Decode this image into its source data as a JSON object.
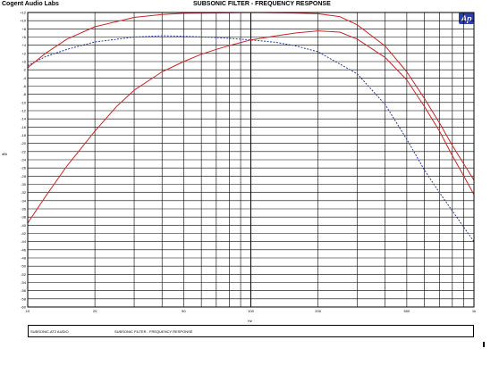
{
  "header": {
    "brand": "Cogent Audio Labs",
    "title": "SUBSONIC FILTER - FREQUENCY RESPONSE",
    "logo_text": "Ap"
  },
  "footer": {
    "left_text": "SUBSONIC.AT2 AUDIO",
    "middle_text": "SUBSONIC FILTER - FREQUENCY RESPONSE"
  },
  "chart_data": {
    "type": "line",
    "title": "SUBSONIC FILTER - FREQUENCY RESPONSE",
    "xlabel": "Hz",
    "ylabel": "dBr",
    "xscale": "log",
    "xlim": [
      10,
      1000
    ],
    "ylim": [
      -60,
      12
    ],
    "x_ticks": [
      {
        "value": 10,
        "label": "10"
      },
      {
        "value": 20,
        "label": "20"
      },
      {
        "value": 50,
        "label": "50"
      },
      {
        "value": 100,
        "label": "100"
      },
      {
        "value": 200,
        "label": "200"
      },
      {
        "value": 500,
        "label": "500"
      },
      {
        "value": 1000,
        "label": "1k"
      }
    ],
    "y_ticks": [
      {
        "value": 12,
        "label": "+12"
      },
      {
        "value": 10,
        "label": "+10"
      },
      {
        "value": 8,
        "label": "+8"
      },
      {
        "value": 6,
        "label": "+6"
      },
      {
        "value": 4,
        "label": "+4"
      },
      {
        "value": 2,
        "label": "+2"
      },
      {
        "value": 0,
        "label": "+0"
      },
      {
        "value": -2,
        "label": "-2"
      },
      {
        "value": -4,
        "label": "-4"
      },
      {
        "value": -6,
        "label": "-6"
      },
      {
        "value": -8,
        "label": "-8"
      },
      {
        "value": -10,
        "label": "-10"
      },
      {
        "value": -12,
        "label": "-12"
      },
      {
        "value": -14,
        "label": "-14"
      },
      {
        "value": -16,
        "label": "-16"
      },
      {
        "value": -18,
        "label": "-18"
      },
      {
        "value": -20,
        "label": "-20"
      },
      {
        "value": -22,
        "label": "-22"
      },
      {
        "value": -24,
        "label": "-24"
      },
      {
        "value": -26,
        "label": "-26"
      },
      {
        "value": -28,
        "label": "-28"
      },
      {
        "value": -30,
        "label": "-30"
      },
      {
        "value": -32,
        "label": "-32"
      },
      {
        "value": -34,
        "label": "-34"
      },
      {
        "value": -36,
        "label": "-36"
      },
      {
        "value": -38,
        "label": "-38"
      },
      {
        "value": -40,
        "label": "-40"
      },
      {
        "value": -42,
        "label": "-42"
      },
      {
        "value": -44,
        "label": "-44"
      },
      {
        "value": -46,
        "label": "-46"
      },
      {
        "value": -48,
        "label": "-48"
      },
      {
        "value": -50,
        "label": "-50"
      },
      {
        "value": -52,
        "label": "-52"
      },
      {
        "value": -54,
        "label": "-54"
      },
      {
        "value": -56,
        "label": "-56"
      },
      {
        "value": -58,
        "label": "-58"
      },
      {
        "value": -60,
        "label": "-60"
      }
    ],
    "grid": true,
    "legend": "none",
    "series": [
      {
        "color": "#2a3ea6",
        "dash": "dashed",
        "x": [
          10,
          12,
          15,
          20,
          30,
          40,
          50,
          70,
          100,
          130,
          160,
          200,
          300,
          400,
          500,
          600,
          700,
          800,
          900,
          1000
        ],
        "y": [
          -1,
          1.2,
          3.0,
          4.8,
          6.0,
          6.3,
          6.2,
          5.9,
          5.3,
          4.7,
          3.8,
          2.4,
          -3.0,
          -10.5,
          -19.0,
          -26.5,
          -32.0,
          -36.5,
          -40.5,
          -44.0
        ]
      },
      {
        "color": "#c62828",
        "dash": "solid",
        "x": [
          10,
          12,
          15,
          20,
          30,
          40,
          50,
          70,
          100,
          150,
          200,
          250,
          300,
          400,
          500,
          600,
          700,
          800,
          900,
          1000
        ],
        "y": [
          -1.5,
          2.0,
          5.5,
          8.5,
          10.8,
          11.5,
          11.8,
          11.9,
          12.0,
          11.9,
          11.7,
          11.0,
          9.0,
          3.8,
          -2.5,
          -9.0,
          -15.0,
          -20.5,
          -25.0,
          -29.0
        ]
      },
      {
        "color": "#c62828",
        "dash": "solid",
        "x": [
          10,
          12,
          15,
          20,
          25,
          30,
          40,
          50,
          60,
          70,
          80,
          100,
          130,
          160,
          200,
          250,
          300,
          400,
          500,
          600,
          700,
          800,
          900,
          1000
        ],
        "y": [
          -39.5,
          -33.0,
          -25.5,
          -17.0,
          -11.0,
          -7.0,
          -2.5,
          0.0,
          1.8,
          3.0,
          3.9,
          5.3,
          6.3,
          7.0,
          7.5,
          7.2,
          5.5,
          1.0,
          -4.5,
          -11.0,
          -17.0,
          -23.0,
          -28.0,
          -32.5
        ]
      }
    ]
  }
}
